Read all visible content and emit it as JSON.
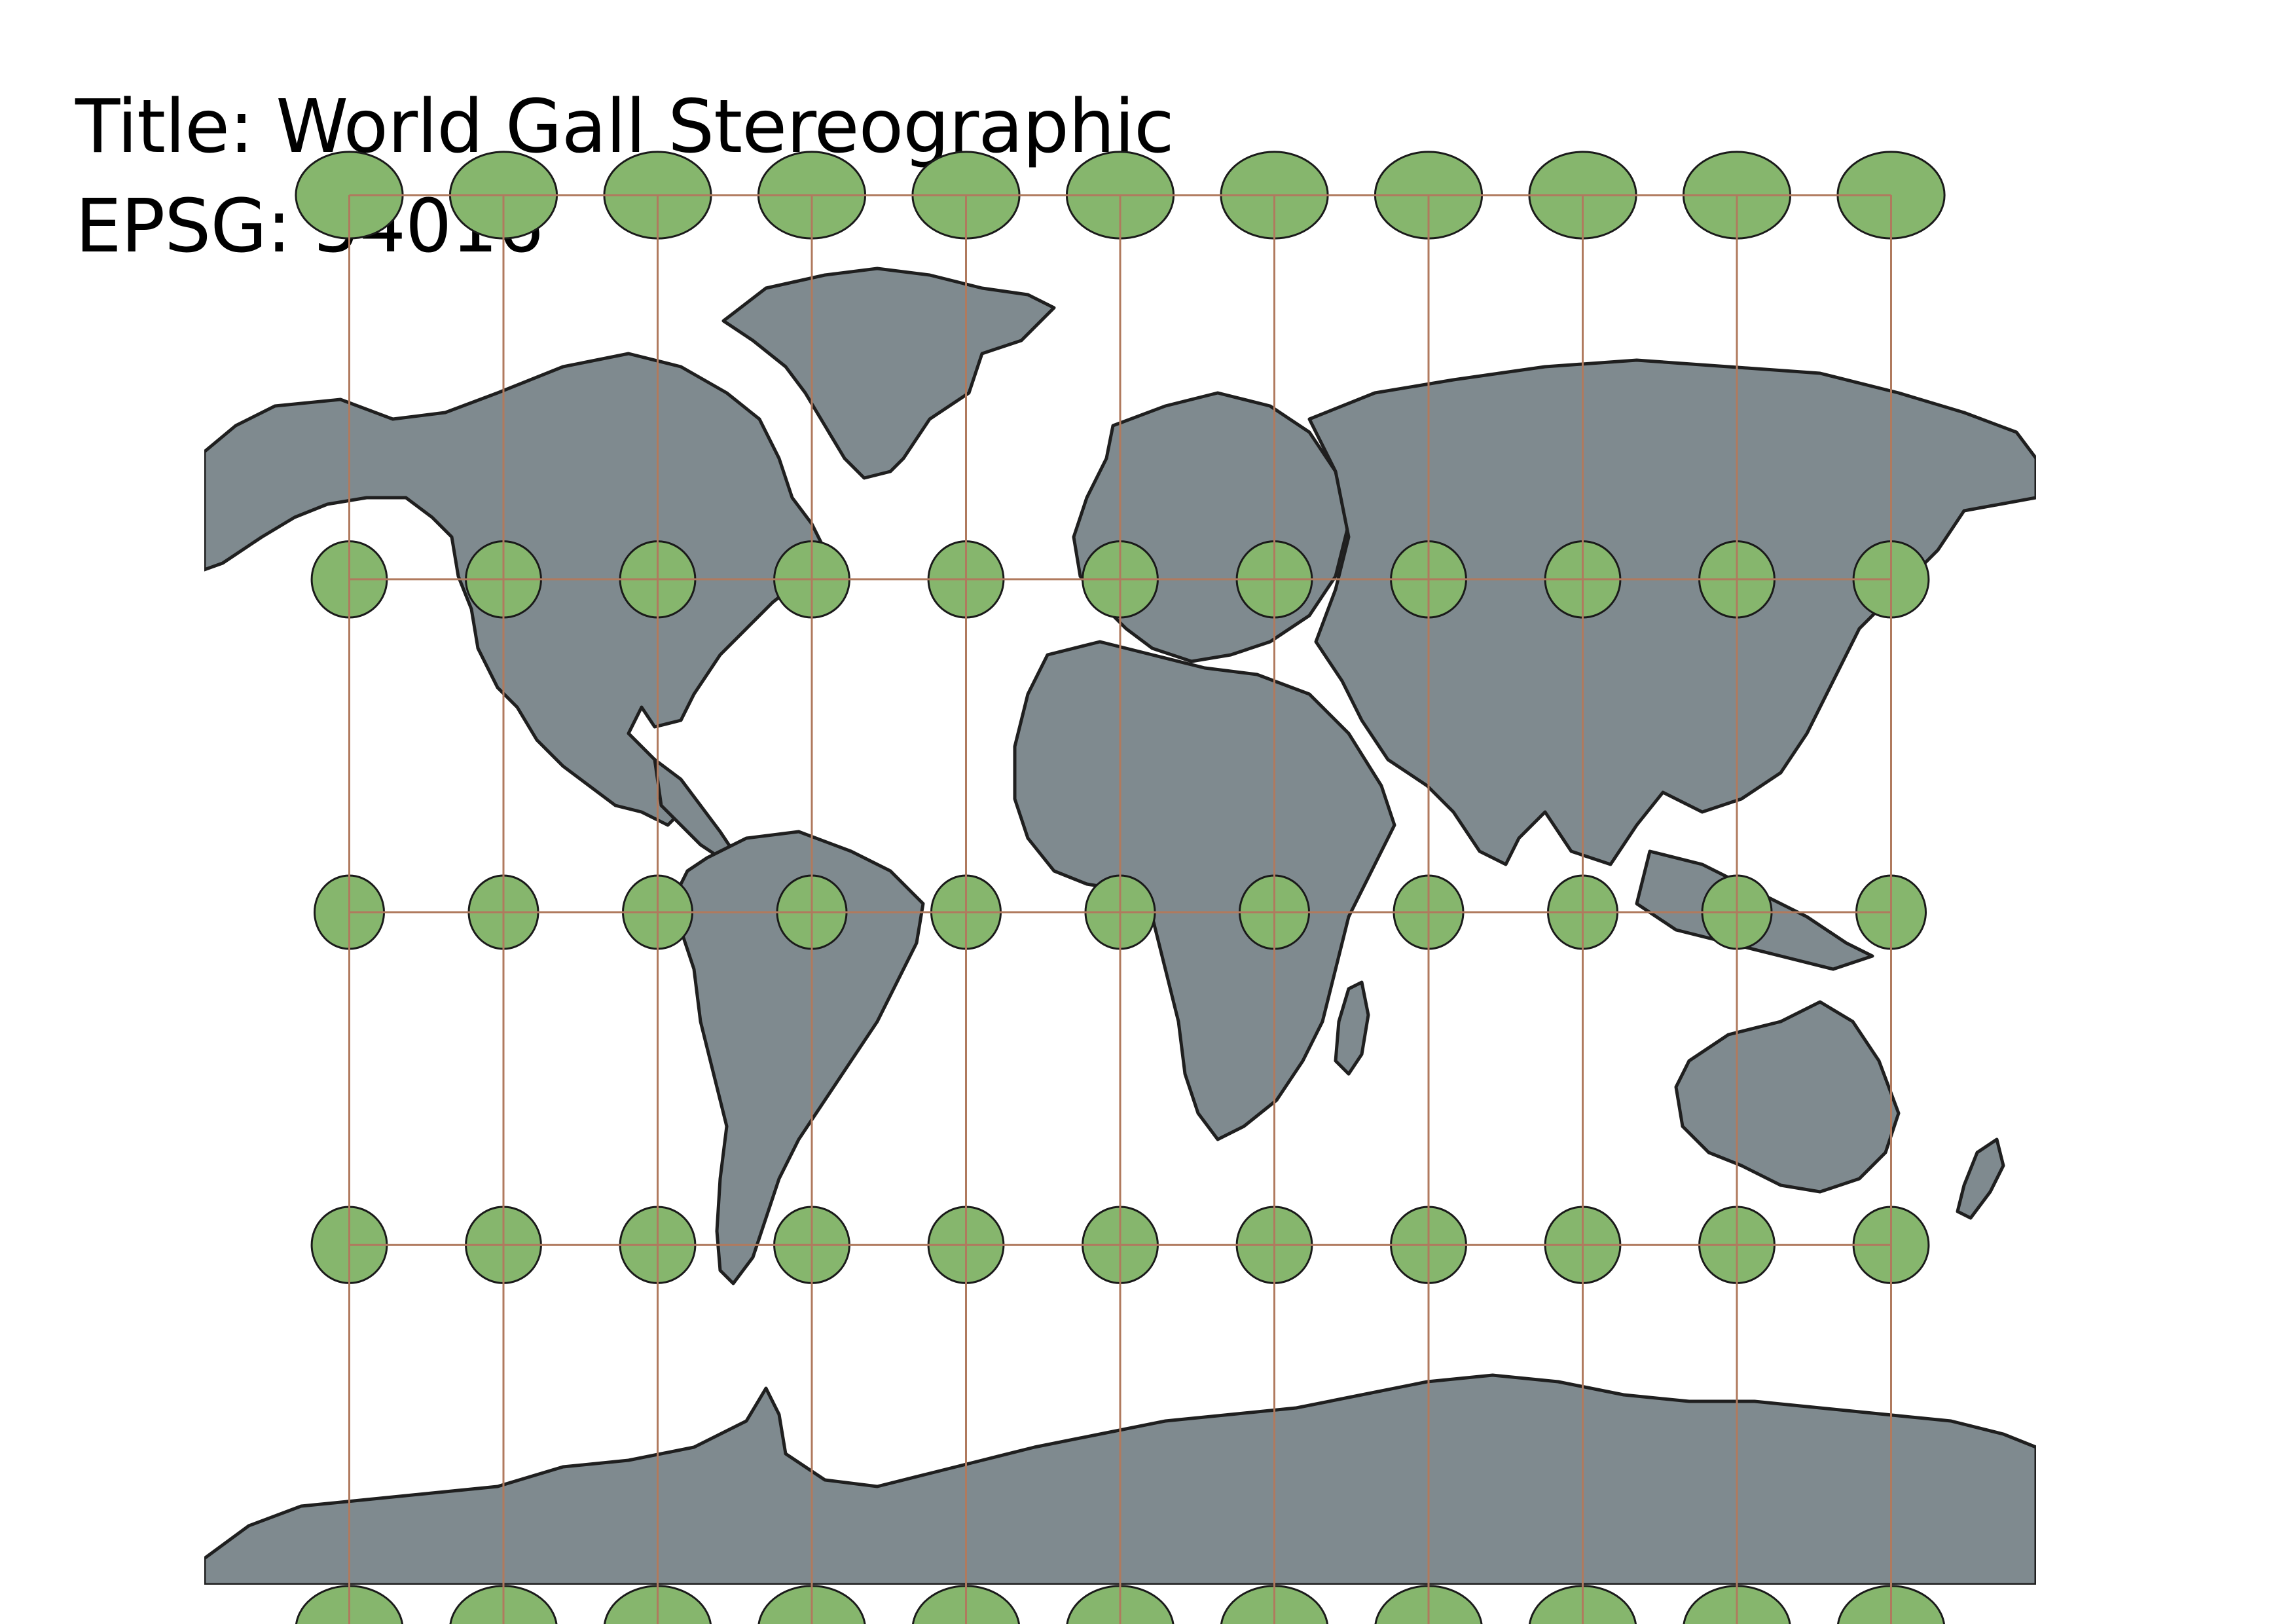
{
  "header": {
    "title_line": "Title: World Gall Stereographic",
    "epsg_line": "EPSG: 54016"
  },
  "colors": {
    "land": "#7f8a8f",
    "land_outline": "#1f1f1f",
    "ellipse_fill": "#86b66d",
    "ellipse_outline": "#1a1a1a",
    "graticule": "#b07a5e",
    "background": "#ffffff"
  },
  "tissot": {
    "longitudes": [
      -150,
      -120,
      -90,
      -60,
      -30,
      0,
      30,
      60,
      90,
      120,
      150
    ],
    "latitudes": [
      60,
      30,
      0,
      -30,
      -60
    ],
    "indicatrix": "tissot-ellipses"
  }
}
